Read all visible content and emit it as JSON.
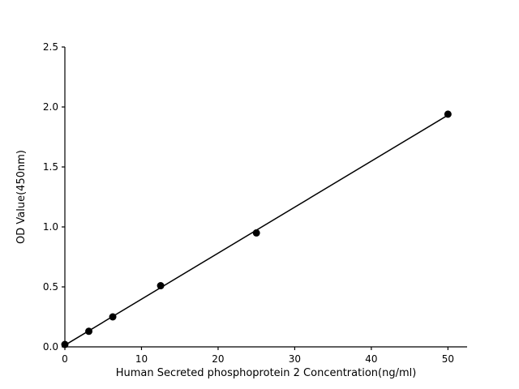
{
  "chart_data": {
    "type": "scatter",
    "title": "",
    "xlabel": "Human Secreted phosphoprotein 2  Concentration(ng/ml)",
    "ylabel": "OD Value(450nm)",
    "x": [
      0,
      3.125,
      6.25,
      12.5,
      25,
      50
    ],
    "y": [
      0.02,
      0.13,
      0.25,
      0.51,
      0.95,
      1.94
    ],
    "fit_line": {
      "type": "linear",
      "x_start": 0,
      "x_end": 50
    },
    "xlim": [
      0,
      52.5
    ],
    "ylim": [
      0,
      2.5
    ],
    "xticks": [
      0,
      10,
      20,
      30,
      40,
      50
    ],
    "xtick_labels": [
      "0",
      "10",
      "20",
      "30",
      "40",
      "50"
    ],
    "yticks": [
      0.0,
      0.5,
      1.0,
      1.5,
      2.0,
      2.5
    ],
    "ytick_labels": [
      "0.0",
      "0.5",
      "1.0",
      "1.5",
      "2.0",
      "2.5"
    ],
    "grid": false,
    "legend": "none",
    "marker_color": "#000000",
    "line_color": "#000000",
    "axis_color": "#000000",
    "background_color": "#ffffff"
  }
}
